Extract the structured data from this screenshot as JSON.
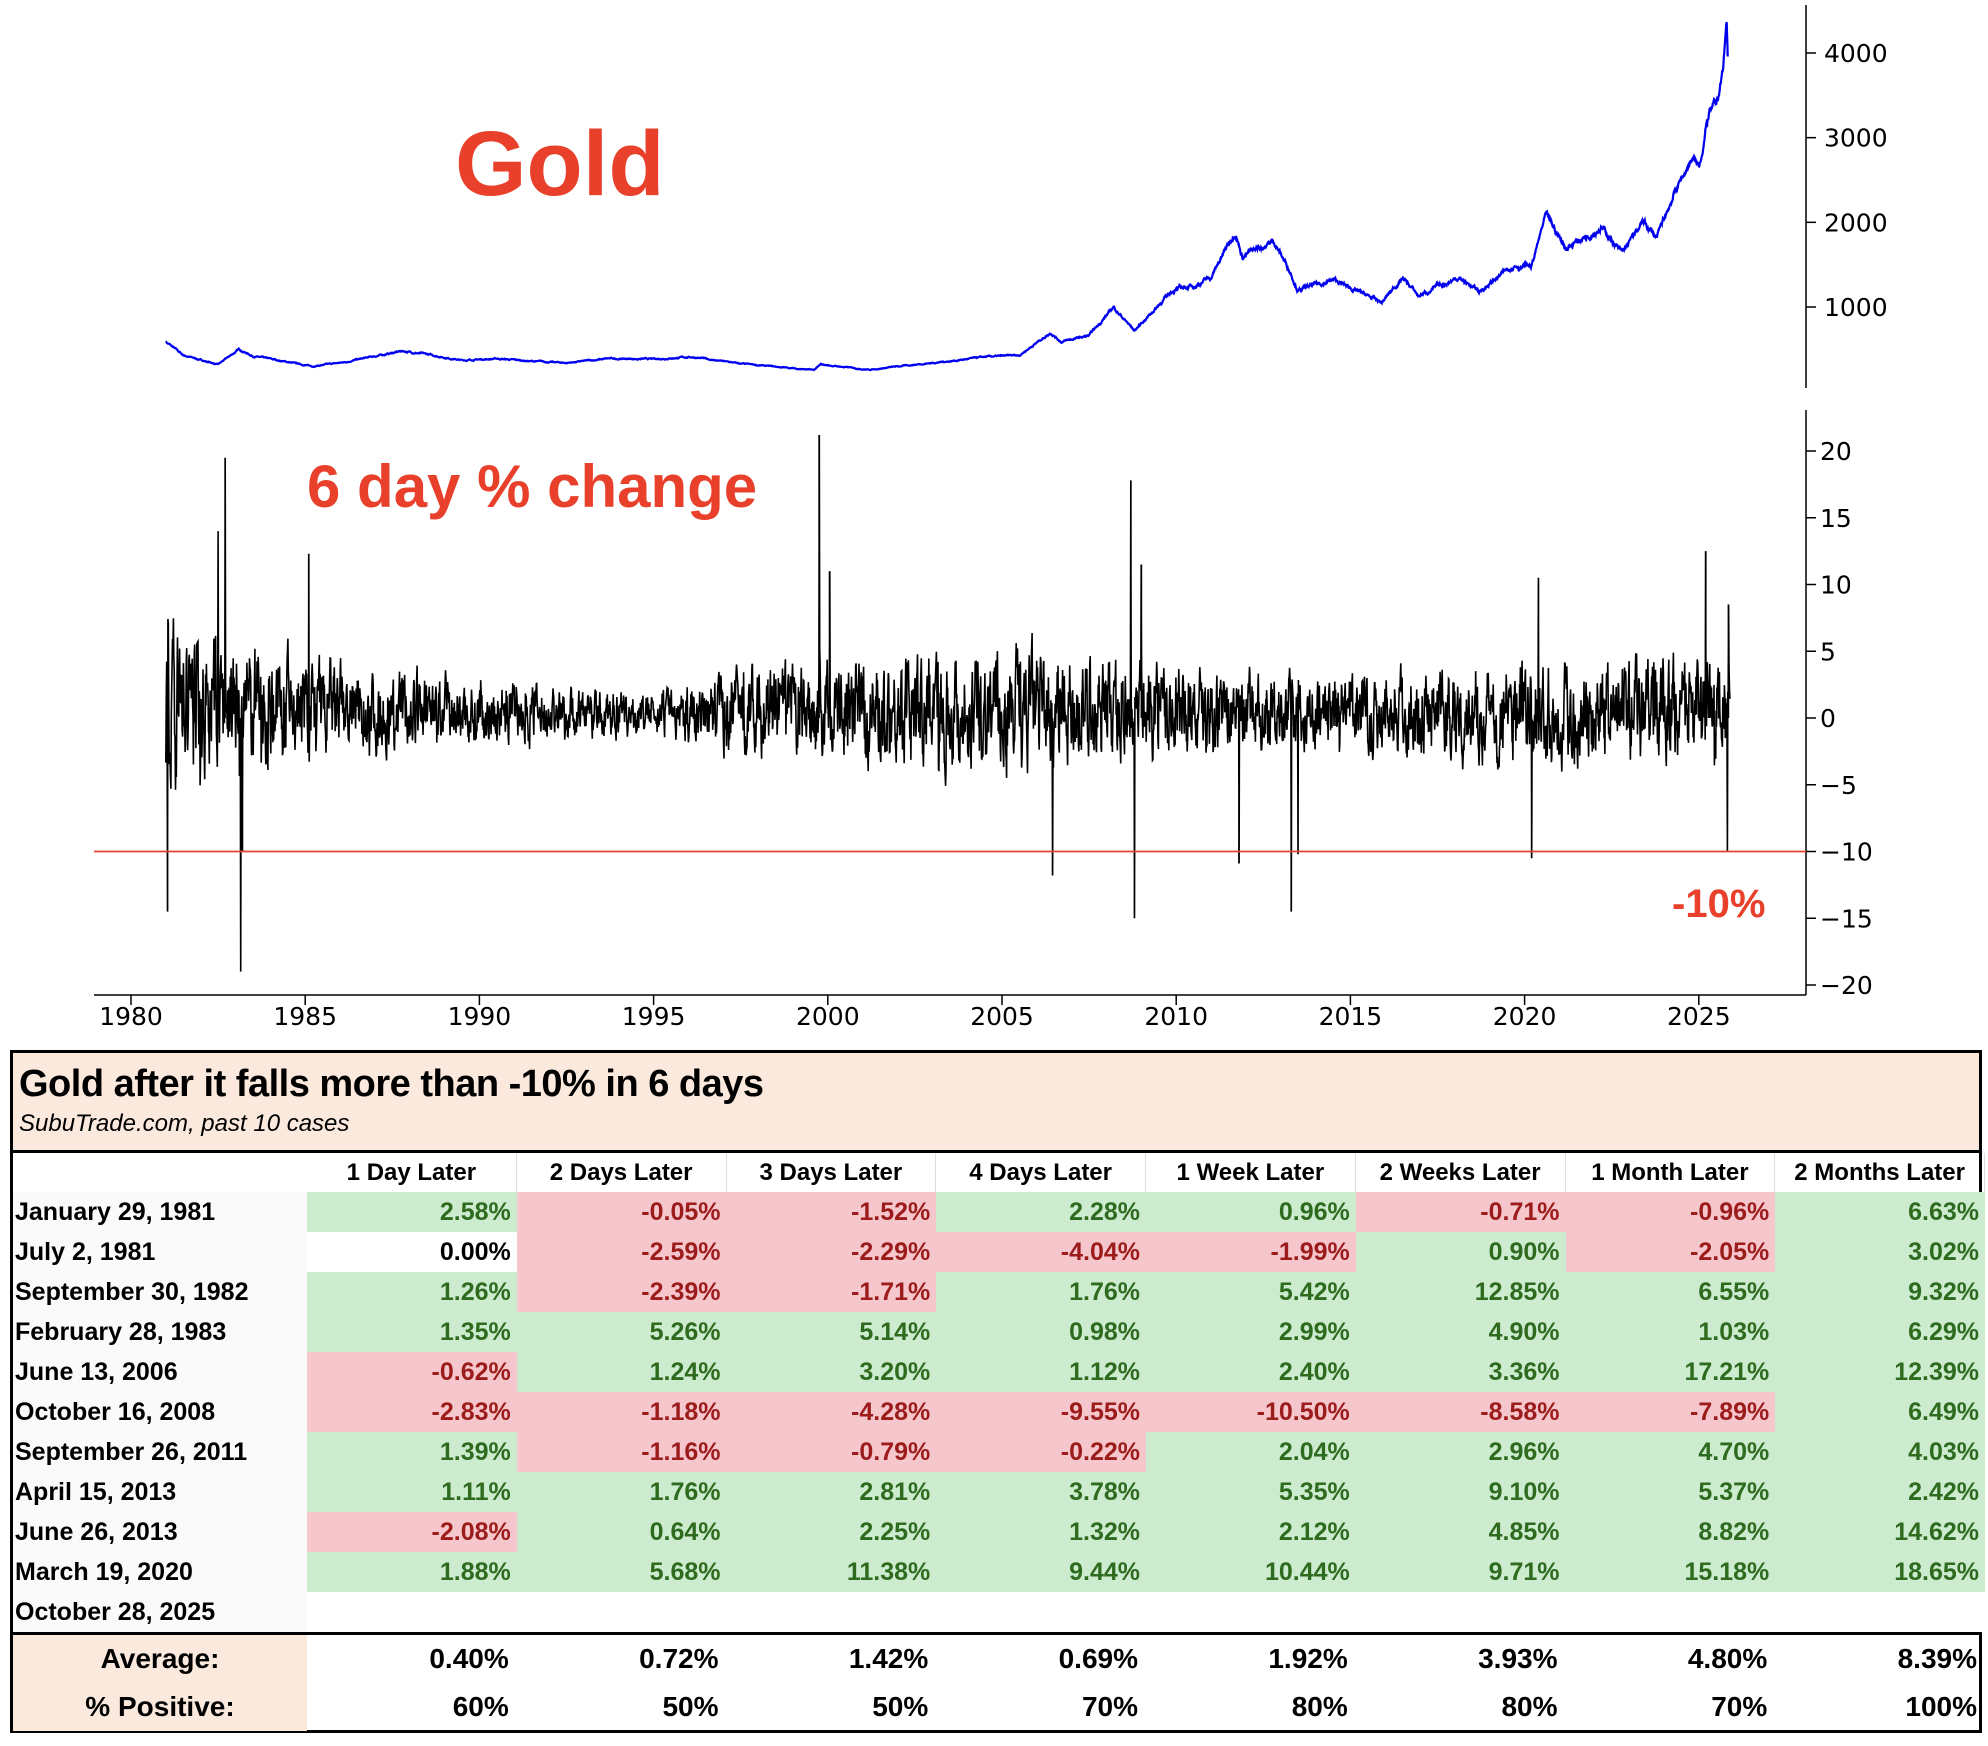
{
  "colors": {
    "price_line": "#0000ee",
    "change_line": "#000000",
    "threshold_line": "#e8402a",
    "annotation": "#e8402a",
    "positive_bg": "#cdeccf",
    "positive_text": "#2e6b1f",
    "negative_bg": "#f5c6cb",
    "negative_text": "#9c1c1c",
    "header_bg": "#fae9dc"
  },
  "chart_data": [
    {
      "type": "line",
      "title": "Gold",
      "y_axis_side": "right",
      "yticks": [
        1000,
        2000,
        3000,
        4000
      ],
      "ylim": [
        0,
        4500
      ],
      "xlim": [
        1978.7,
        2028.5
      ],
      "series": [
        {
          "x": [
            1981.0,
            1981.5,
            1982.5,
            1983.1,
            1983.5,
            1984.5,
            1985.2,
            1986.0,
            1987.8,
            1988.5,
            1989.5,
            1990.5,
            1991.5,
            1992.5,
            1993.7,
            1995.0,
            1996.1,
            1997.5,
            1999.6,
            1999.8,
            2001.2,
            2002.5,
            2003.5,
            2004.5,
            2005.5,
            2006.4,
            2006.7,
            2007.5,
            2008.2,
            2008.8,
            2009.9,
            2010.5,
            2011.0,
            2011.7,
            2011.9,
            2012.8,
            2013.3,
            2013.5,
            2014.5,
            2015.9,
            2016.5,
            2016.95,
            2018.1,
            2018.7,
            2019.7,
            2020.2,
            2020.6,
            2021.2,
            2022.2,
            2022.8,
            2023.4,
            2023.8,
            2024.3,
            2024.8,
            2025.0,
            2025.3,
            2025.5,
            2025.7,
            2025.8,
            2025.83
          ],
          "y": [
            590,
            430,
            320,
            500,
            420,
            350,
            300,
            340,
            480,
            440,
            370,
            390,
            360,
            340,
            390,
            385,
            410,
            330,
            255,
            320,
            260,
            320,
            360,
            410,
            430,
            700,
            590,
            660,
            1000,
            720,
            1200,
            1250,
            1350,
            1900,
            1600,
            1780,
            1400,
            1200,
            1320,
            1050,
            1350,
            1130,
            1350,
            1180,
            1500,
            1480,
            2070,
            1700,
            1950,
            1630,
            2000,
            1820,
            2350,
            2750,
            2650,
            3300,
            3350,
            3800,
            4380,
            3950
          ]
        }
      ]
    },
    {
      "type": "line",
      "title": "6 day % change",
      "y_axis_side": "right",
      "yticks": [
        20,
        15,
        10,
        5,
        0,
        -5,
        -10,
        -15,
        -20
      ],
      "ytick_labels": [
        "20",
        "15",
        "10",
        "5",
        "0",
        "−5",
        "−10",
        "−15",
        "−20"
      ],
      "ylim": [
        -21,
        23
      ],
      "xlim": [
        1978.7,
        2028.5
      ],
      "xticks": [
        1980,
        1985,
        1990,
        1995,
        2000,
        2005,
        2010,
        2015,
        2020,
        2025
      ],
      "xtick_labels": [
        "1980",
        "1985",
        "1990",
        "1995",
        "2000",
        "2005",
        "2010",
        "2015",
        "2020",
        "2025"
      ],
      "threshold": {
        "value": -10,
        "label": "-10%"
      },
      "typical_range": {
        "x": [
          1981,
          1985,
          1989,
          1995,
          1997,
          2005,
          2013.8,
          2019.5,
          2025.9
        ],
        "amplitude": [
          8,
          5,
          3.5,
          2,
          4,
          6,
          3.5,
          5,
          5
        ]
      },
      "extremes": {
        "x": [
          1981.05,
          1982.5,
          1982.7,
          1983.15,
          1983.2,
          1985.1,
          1999.75,
          2000.05,
          2006.45,
          2008.7,
          2008.8,
          2009.0,
          2011.8,
          2013.3,
          2013.5,
          2020.2,
          2020.4,
          2025.2,
          2025.82,
          2025.85
        ],
        "y": [
          -14.5,
          14,
          19.5,
          -19,
          -10,
          12.3,
          21.2,
          11,
          -11.8,
          17.8,
          -15,
          11.5,
          -10.9,
          -14.5,
          -10.2,
          -10.5,
          10.5,
          12.5,
          -10,
          8.5
        ]
      }
    }
  ],
  "table": {
    "title": "Gold after it falls more than -10% in 6 days",
    "subtitle": "SubuTrade.com, past 10 cases",
    "columns": [
      "1 Day Later",
      "2 Days Later",
      "3 Days Later",
      "4 Days Later",
      "1 Week Later",
      "2 Weeks Later",
      "1 Month Later",
      "2 Months Later"
    ],
    "rows": [
      {
        "date": "January 29, 1981",
        "values": [
          "2.58%",
          "-0.05%",
          "-1.52%",
          "2.28%",
          "0.96%",
          "-0.71%",
          "-0.96%",
          "6.63%"
        ]
      },
      {
        "date": "July 2, 1981",
        "values": [
          "0.00%",
          "-2.59%",
          "-2.29%",
          "-4.04%",
          "-1.99%",
          "0.90%",
          "-2.05%",
          "3.02%"
        ]
      },
      {
        "date": "September 30, 1982",
        "values": [
          "1.26%",
          "-2.39%",
          "-1.71%",
          "1.76%",
          "5.42%",
          "12.85%",
          "6.55%",
          "9.32%"
        ]
      },
      {
        "date": "February 28, 1983",
        "values": [
          "1.35%",
          "5.26%",
          "5.14%",
          "0.98%",
          "2.99%",
          "4.90%",
          "1.03%",
          "6.29%"
        ]
      },
      {
        "date": "June 13, 2006",
        "values": [
          "-0.62%",
          "1.24%",
          "3.20%",
          "1.12%",
          "2.40%",
          "3.36%",
          "17.21%",
          "12.39%"
        ]
      },
      {
        "date": "October 16, 2008",
        "values": [
          "-2.83%",
          "-1.18%",
          "-4.28%",
          "-9.55%",
          "-10.50%",
          "-8.58%",
          "-7.89%",
          "6.49%"
        ]
      },
      {
        "date": "September 26, 2011",
        "values": [
          "1.39%",
          "-1.16%",
          "-0.79%",
          "-0.22%",
          "2.04%",
          "2.96%",
          "4.70%",
          "4.03%"
        ]
      },
      {
        "date": "April 15, 2013",
        "values": [
          "1.11%",
          "1.76%",
          "2.81%",
          "3.78%",
          "5.35%",
          "9.10%",
          "5.37%",
          "2.42%"
        ]
      },
      {
        "date": "June 26, 2013",
        "values": [
          "-2.08%",
          "0.64%",
          "2.25%",
          "1.32%",
          "2.12%",
          "4.85%",
          "8.82%",
          "14.62%"
        ]
      },
      {
        "date": "March 19, 2020",
        "values": [
          "1.88%",
          "5.68%",
          "11.38%",
          "9.44%",
          "10.44%",
          "9.71%",
          "15.18%",
          "18.65%"
        ]
      },
      {
        "date": "October 28, 2025",
        "values": [
          "",
          "",
          "",
          "",
          "",
          "",
          "",
          ""
        ]
      }
    ],
    "summary": [
      {
        "label": "Average:",
        "values": [
          "0.40%",
          "0.72%",
          "1.42%",
          "0.69%",
          "1.92%",
          "3.93%",
          "4.80%",
          "8.39%"
        ]
      },
      {
        "label": "% Positive:",
        "values": [
          "60%",
          "50%",
          "50%",
          "70%",
          "80%",
          "80%",
          "70%",
          "100%"
        ]
      }
    ]
  }
}
